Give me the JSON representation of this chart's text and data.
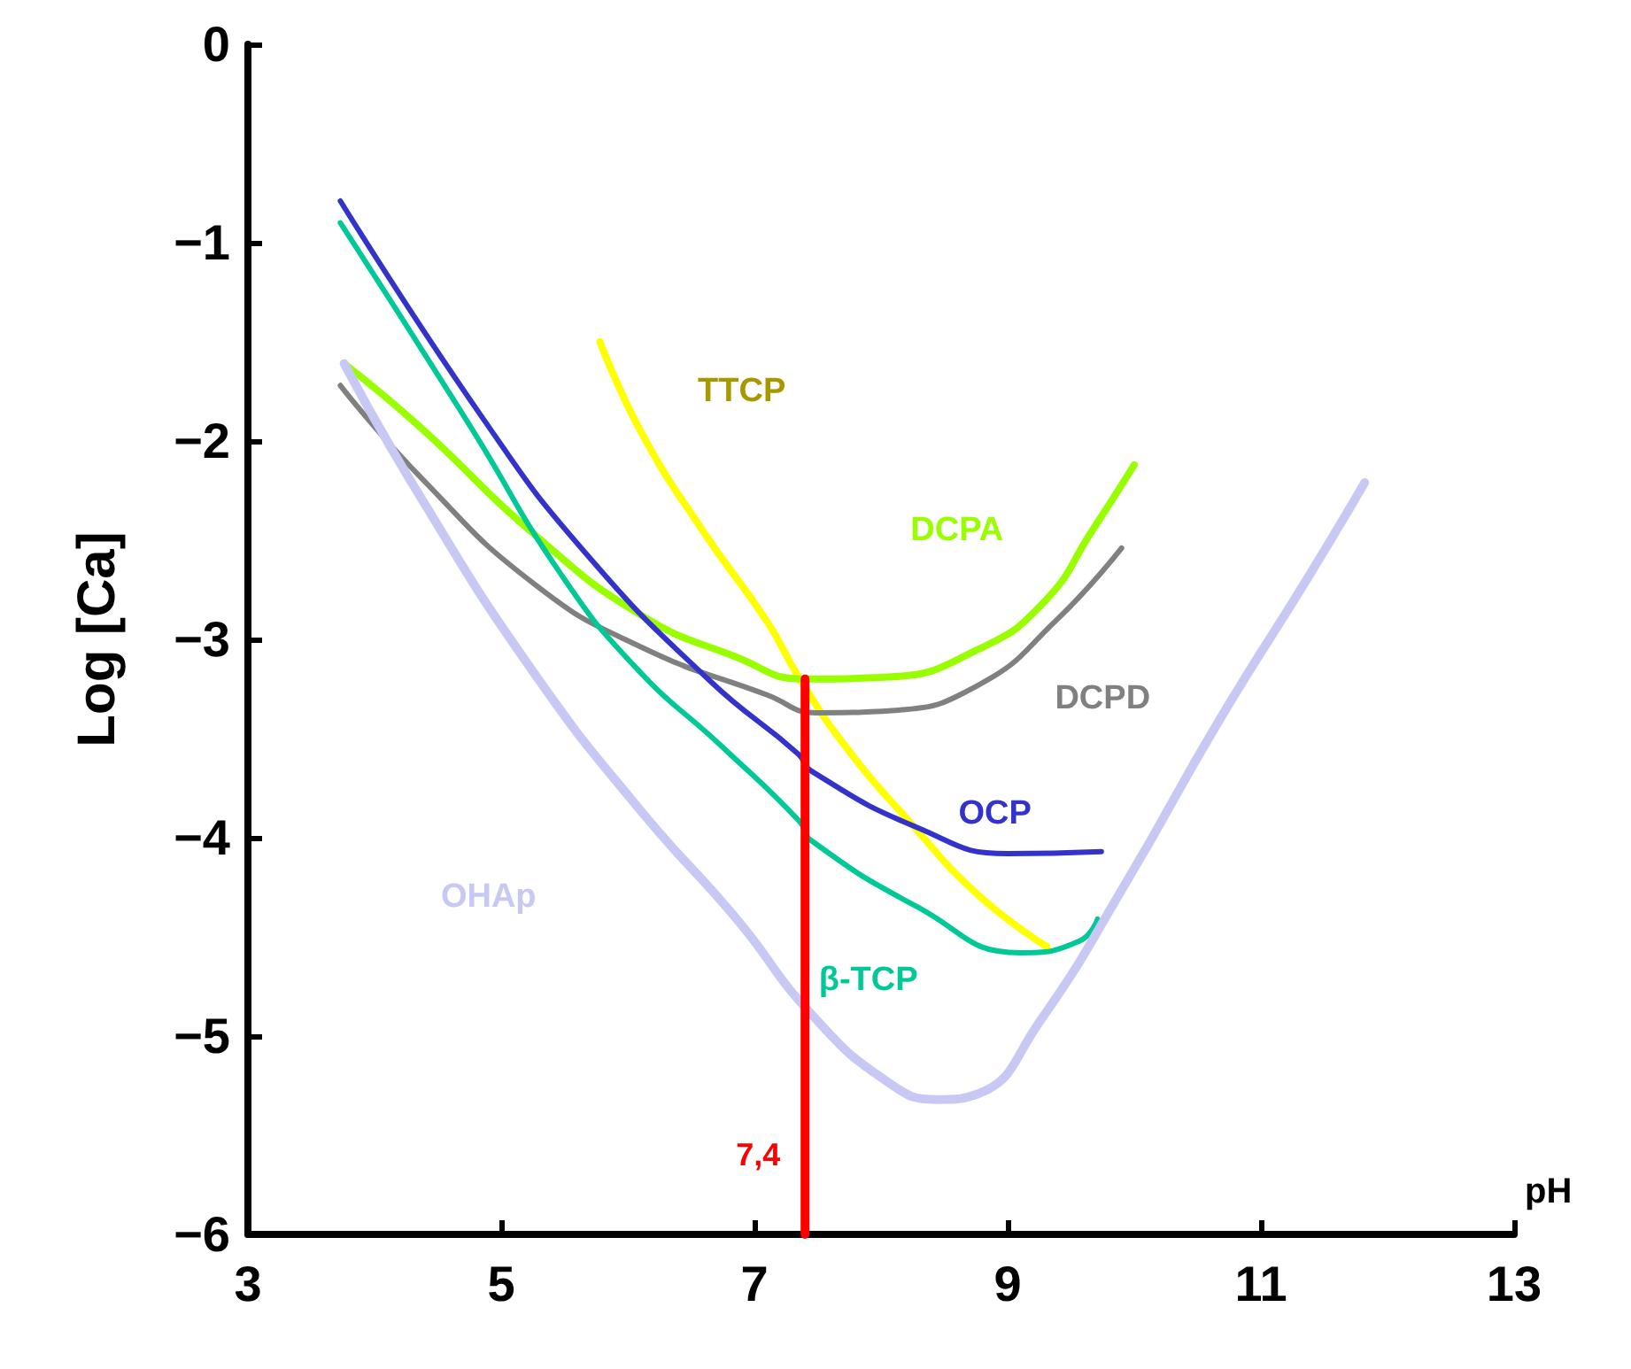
{
  "chart_data": {
    "type": "line",
    "xlabel": "pH",
    "ylabel": "Log [Ca]",
    "xlim": [
      3,
      13
    ],
    "xticks": [
      3,
      5,
      7,
      9,
      11,
      13
    ],
    "ylim": [
      -6,
      0
    ],
    "yticks": [
      -6,
      -5,
      -4,
      -3,
      -2,
      -1,
      0
    ],
    "grid": false,
    "legend": false,
    "marker": "none",
    "line_style": "solid",
    "series": [
      {
        "name": "TTCP",
        "color": "#ffff00",
        "x": [
          5.78,
          6.11,
          6.6,
          7.1,
          7.35,
          7.72,
          8.24,
          8.77,
          9.31
        ],
        "values": [
          -1.5,
          -1.96,
          -2.46,
          -2.91,
          -3.19,
          -3.54,
          -3.93,
          -4.29,
          -4.55
        ]
      },
      {
        "name": "DCPA",
        "color": "#99ff00",
        "x": [
          3.76,
          4.36,
          5.26,
          6.11,
          6.86,
          7.39,
          8.06,
          8.77,
          9.29,
          9.67,
          10.0
        ],
        "values": [
          -1.61,
          -1.93,
          -2.47,
          -2.88,
          -3.09,
          -3.2,
          -3.19,
          -3.05,
          -2.81,
          -2.45,
          -2.12
        ]
      },
      {
        "name": "DCPD",
        "color": "#808080",
        "x": [
          3.73,
          4.36,
          5.26,
          6.11,
          7.1,
          7.49,
          8.06,
          8.77,
          9.39,
          9.9
        ],
        "values": [
          -1.72,
          -2.18,
          -2.72,
          -3.04,
          -3.28,
          -3.37,
          -3.36,
          -3.23,
          -2.9,
          -2.54
        ]
      },
      {
        "name": "OCP",
        "color": "#3333cc",
        "x": [
          3.73,
          4.86,
          5.66,
          6.65,
          7.35,
          7.44,
          8.29,
          9.0,
          9.74
        ],
        "values": [
          -0.79,
          -1.89,
          -2.56,
          -3.21,
          -3.58,
          -3.66,
          -3.95,
          -4.08,
          -4.07
        ]
      },
      {
        "name": "β-TCP",
        "color": "#00c896",
        "x": [
          3.73,
          4.76,
          5.46,
          6.06,
          6.76,
          7.36,
          7.44,
          8.29,
          9.1,
          9.57,
          9.71
        ],
        "values": [
          -0.9,
          -1.93,
          -2.66,
          -3.14,
          -3.55,
          -3.92,
          -4.01,
          -4.35,
          -4.58,
          -4.52,
          -4.41
        ]
      },
      {
        "name": "OHAp",
        "color": "#c8c8f5",
        "x": [
          3.76,
          4.36,
          5.26,
          6.11,
          6.86,
          7.45,
          8.05,
          8.44,
          8.77,
          9.25,
          9.95,
          10.66,
          11.37,
          11.82
        ],
        "values": [
          -1.61,
          -2.28,
          -3.17,
          -3.87,
          -4.41,
          -4.89,
          -5.23,
          -5.32,
          -5.29,
          -4.93,
          -4.21,
          -3.42,
          -2.69,
          -2.21
        ]
      },
      {
        "color": "#ff0000",
        "x": [
          7.4,
          7.4
        ],
        "values": [
          -6,
          -3.2
        ]
      }
    ],
    "annotations": [
      {
        "text": "7,4",
        "x": 7.4,
        "y": -5.6
      }
    ]
  }
}
